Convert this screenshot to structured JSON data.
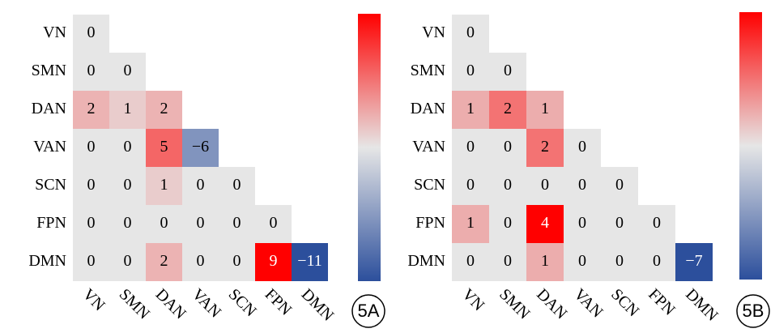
{
  "chart_data": [
    {
      "type": "heatmap",
      "label": "5A",
      "categories": [
        "VN",
        "SMN",
        "DAN",
        "VAN",
        "SCN",
        "FPN",
        "DMN"
      ],
      "values": [
        [
          0
        ],
        [
          0,
          0
        ],
        [
          2,
          1,
          2
        ],
        [
          0,
          0,
          5,
          -6
        ],
        [
          0,
          0,
          1,
          0,
          0
        ],
        [
          0,
          0,
          0,
          0,
          0,
          0
        ],
        [
          0,
          0,
          2,
          0,
          0,
          9,
          -11
        ]
      ],
      "value_labels": [
        [
          "0"
        ],
        [
          "0",
          "0"
        ],
        [
          "2",
          "1",
          "2"
        ],
        [
          "0",
          "0",
          "5",
          "−6"
        ],
        [
          "0",
          "0",
          "1",
          "0",
          "0"
        ],
        [
          "0",
          "0",
          "0",
          "0",
          "0",
          "0"
        ],
        [
          "0",
          "0",
          "2",
          "0",
          "0",
          "9",
          "−11"
        ]
      ],
      "vlim": [
        -11,
        9
      ],
      "cmap": [
        "#2c4f9c",
        "#e6e6e6",
        "#ff0000"
      ],
      "colorbar": true
    },
    {
      "type": "heatmap",
      "label": "5B",
      "categories": [
        "VN",
        "SMN",
        "DAN",
        "VAN",
        "SCN",
        "FPN",
        "DMN"
      ],
      "values": [
        [
          0
        ],
        [
          0,
          0
        ],
        [
          1,
          2,
          1
        ],
        [
          0,
          0,
          2,
          0
        ],
        [
          0,
          0,
          0,
          0,
          0
        ],
        [
          1,
          0,
          4,
          0,
          0,
          0
        ],
        [
          0,
          0,
          1,
          0,
          0,
          0,
          -7
        ]
      ],
      "value_labels": [
        [
          "0"
        ],
        [
          "0",
          "0"
        ],
        [
          "1",
          "2",
          "1"
        ],
        [
          "0",
          "0",
          "2",
          "0"
        ],
        [
          "0",
          "0",
          "0",
          "0",
          "0"
        ],
        [
          "1",
          "0",
          "4",
          "0",
          "0",
          "0"
        ],
        [
          "0",
          "0",
          "1",
          "0",
          "0",
          "0",
          "−7"
        ]
      ],
      "vlim": [
        -7,
        4
      ],
      "cmap": [
        "#2c4f9c",
        "#e6e6e6",
        "#ff0000"
      ],
      "colorbar": true
    }
  ]
}
